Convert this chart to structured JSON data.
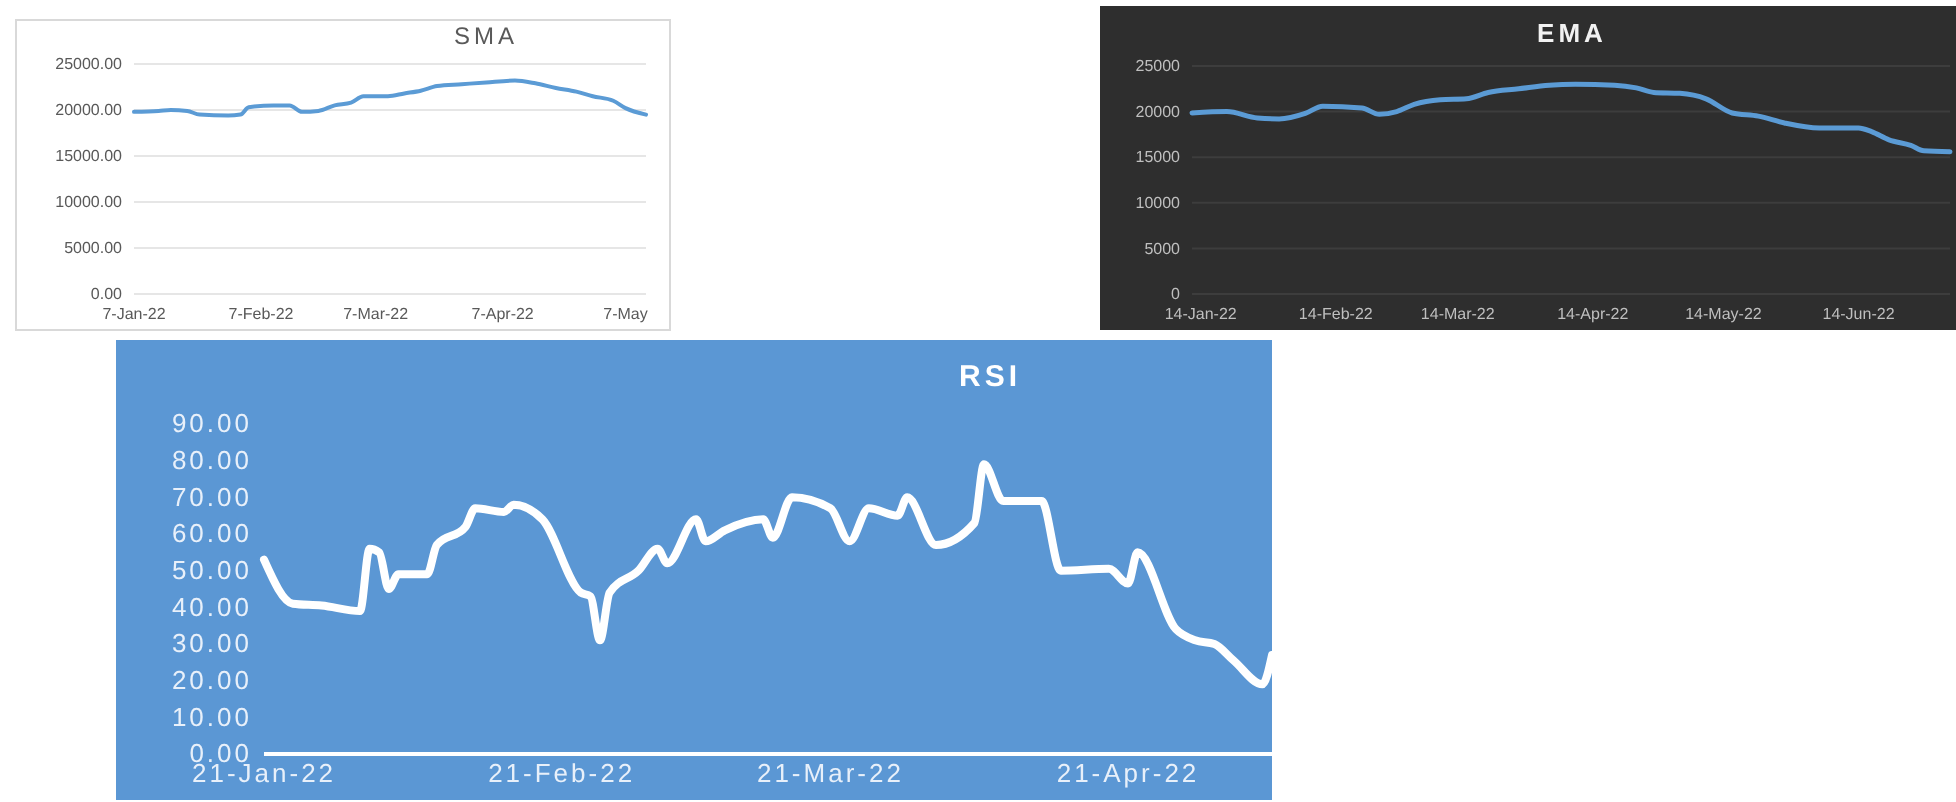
{
  "chart_data": [
    {
      "type": "line",
      "title": "SMA",
      "grid": "y",
      "marker": "none",
      "line_style": "solid",
      "xlim": [
        "2022-01-07",
        "2022-05-12"
      ],
      "ylim": [
        0,
        25000
      ],
      "xticks": [
        {
          "value": "2022-01-07",
          "label": "7-Jan-22"
        },
        {
          "value": "2022-02-07",
          "label": "7-Feb-22"
        },
        {
          "value": "2022-03-07",
          "label": "7-Mar-22"
        },
        {
          "value": "2022-04-07",
          "label": "7-Apr-22"
        },
        {
          "value": "2022-05-07",
          "label": "7-May"
        }
      ],
      "yticks": [
        {
          "value": 0,
          "label": "0.00"
        },
        {
          "value": 5000,
          "label": "5000.00"
        },
        {
          "value": 10000,
          "label": "10000.00"
        },
        {
          "value": 15000,
          "label": "15000.00"
        },
        {
          "value": 20000,
          "label": "20000.00"
        },
        {
          "value": 25000,
          "label": "25000.00"
        }
      ],
      "series": [
        {
          "color": "#5b9bd5",
          "x": [
            "2022-01-07",
            "2022-01-13",
            "2022-01-16",
            "2022-01-20",
            "2022-01-23",
            "2022-01-30",
            "2022-02-02",
            "2022-02-04",
            "2022-02-10",
            "2022-02-14",
            "2022-02-17",
            "2022-02-21",
            "2022-02-25",
            "2022-03-01",
            "2022-03-04",
            "2022-03-10",
            "2022-03-14",
            "2022-03-18",
            "2022-03-22",
            "2022-03-28",
            "2022-04-03",
            "2022-04-10",
            "2022-04-15",
            "2022-04-20",
            "2022-04-25",
            "2022-04-29",
            "2022-05-04",
            "2022-05-07",
            "2022-05-12"
          ],
          "values": [
            19800,
            19900,
            20000,
            19900,
            19500,
            19400,
            19500,
            20300,
            20500,
            20500,
            19800,
            19900,
            20500,
            20800,
            21500,
            21500,
            21800,
            22100,
            22600,
            22800,
            23000,
            23200,
            22900,
            22400,
            22000,
            21500,
            21000,
            20200,
            19500
          ]
        }
      ]
    },
    {
      "type": "line",
      "title": "EMA",
      "grid": "y",
      "marker": "none",
      "line_style": "solid",
      "xlim": [
        "2022-01-12",
        "2022-07-05"
      ],
      "ylim": [
        0,
        25000
      ],
      "xticks": [
        {
          "value": "2022-01-14",
          "label": "14-Jan-22"
        },
        {
          "value": "2022-02-14",
          "label": "14-Feb-22"
        },
        {
          "value": "2022-03-14",
          "label": "14-Mar-22"
        },
        {
          "value": "2022-04-14",
          "label": "14-Apr-22"
        },
        {
          "value": "2022-05-14",
          "label": "14-May-22"
        },
        {
          "value": "2022-06-14",
          "label": "14-Jun-22"
        }
      ],
      "yticks": [
        0,
        5000,
        10000,
        15000,
        20000,
        25000
      ],
      "series": [
        {
          "color": "#5b9bd5",
          "x": [
            "2022-01-12",
            "2022-01-20",
            "2022-01-27",
            "2022-02-01",
            "2022-02-07",
            "2022-02-11",
            "2022-02-20",
            "2022-02-24",
            "2022-02-28",
            "2022-03-04",
            "2022-03-10",
            "2022-03-16",
            "2022-03-21",
            "2022-03-28",
            "2022-04-04",
            "2022-04-10",
            "2022-04-19",
            "2022-04-24",
            "2022-04-28",
            "2022-05-04",
            "2022-05-10",
            "2022-05-16",
            "2022-05-22",
            "2022-05-28",
            "2022-06-05",
            "2022-06-14",
            "2022-06-17",
            "2022-06-21",
            "2022-06-26",
            "2022-06-29",
            "2022-07-05"
          ],
          "values": [
            19850,
            20000,
            19300,
            19200,
            19800,
            20600,
            20400,
            19700,
            20000,
            20800,
            21300,
            21400,
            22100,
            22500,
            22900,
            23000,
            22900,
            22600,
            22100,
            22000,
            21400,
            19850,
            19500,
            18750,
            18200,
            18200,
            17800,
            16900,
            16300,
            15700,
            15600
          ]
        }
      ]
    },
    {
      "type": "line",
      "title": "RSI",
      "grid": false,
      "marker": "none",
      "line_style": "solid",
      "xlim": [
        "2022-01-21",
        "2022-05-06"
      ],
      "ylim": [
        0,
        90
      ],
      "xticks": [
        {
          "value": "2022-01-21",
          "label": "21-Jan-22"
        },
        {
          "value": "2022-02-21",
          "label": "21-Feb-22"
        },
        {
          "value": "2022-03-21",
          "label": "21-Mar-22"
        },
        {
          "value": "2022-04-21",
          "label": "21-Apr-22"
        }
      ],
      "yticks": [
        {
          "value": 0,
          "label": "0.00"
        },
        {
          "value": 10,
          "label": "10.00"
        },
        {
          "value": 20,
          "label": "20.00"
        },
        {
          "value": 30,
          "label": "30.00"
        },
        {
          "value": 40,
          "label": "40.00"
        },
        {
          "value": 50,
          "label": "50.00"
        },
        {
          "value": 60,
          "label": "60.00"
        },
        {
          "value": 70,
          "label": "70.00"
        },
        {
          "value": 80,
          "label": "80.00"
        },
        {
          "value": 90,
          "label": "90.00"
        }
      ],
      "series": [
        {
          "color": "#ffffff",
          "x": [
            "2022-01-21",
            "2022-01-24",
            "2022-01-27",
            "2022-01-31",
            "2022-02-01",
            "2022-02-02",
            "2022-02-03",
            "2022-02-04",
            "2022-02-07",
            "2022-02-08",
            "2022-02-11",
            "2022-02-12",
            "2022-02-15",
            "2022-02-16",
            "2022-02-19",
            "2022-02-23",
            "2022-02-24",
            "2022-02-25",
            "2022-02-26",
            "2022-03-01",
            "2022-03-03",
            "2022-03-04",
            "2022-03-07",
            "2022-03-08",
            "2022-03-10",
            "2022-03-14",
            "2022-03-15",
            "2022-03-17",
            "2022-03-21",
            "2022-03-23",
            "2022-03-25",
            "2022-03-28",
            "2022-03-29",
            "2022-04-01",
            "2022-04-05",
            "2022-04-06",
            "2022-04-08",
            "2022-04-12",
            "2022-04-14",
            "2022-04-19",
            "2022-04-21",
            "2022-04-22",
            "2022-04-26",
            "2022-04-28",
            "2022-04-30",
            "2022-05-02",
            "2022-05-05",
            "2022-05-06"
          ],
          "values": [
            53,
            41,
            40.5,
            39,
            56,
            55,
            45,
            49,
            49,
            57,
            62,
            67,
            66,
            68,
            64,
            44,
            43,
            31,
            44,
            50,
            56,
            52,
            64,
            58,
            61,
            64,
            59,
            70,
            67,
            58,
            67,
            65,
            70,
            57,
            63,
            79,
            69,
            69,
            50,
            50.5,
            46.5,
            55,
            34,
            31,
            30,
            25.5,
            19,
            27
          ]
        }
      ]
    }
  ]
}
